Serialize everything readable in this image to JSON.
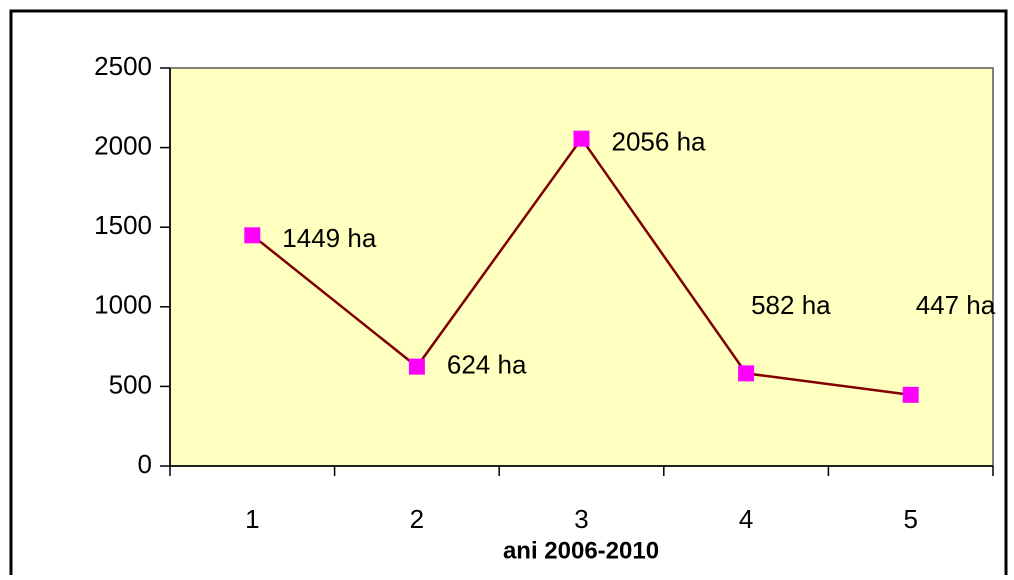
{
  "chart_data": {
    "type": "line",
    "x_label": "ani 2006-2010",
    "categories": [
      "1",
      "2",
      "3",
      "4",
      "5"
    ],
    "series": [
      {
        "name": null,
        "color": "#800000",
        "marker_color": "#ff00ff",
        "values": [
          1449,
          624,
          2056,
          582,
          447
        ],
        "value_labels": [
          "1449 ha",
          "624 ha",
          "2056 ha",
          "582 ha",
          "447 ha"
        ]
      }
    ],
    "ylim": [
      0,
      2500
    ],
    "yticks": [
      0,
      500,
      1000,
      1500,
      2000,
      2500
    ],
    "grid": false,
    "plot_background": "#ffffc0"
  }
}
